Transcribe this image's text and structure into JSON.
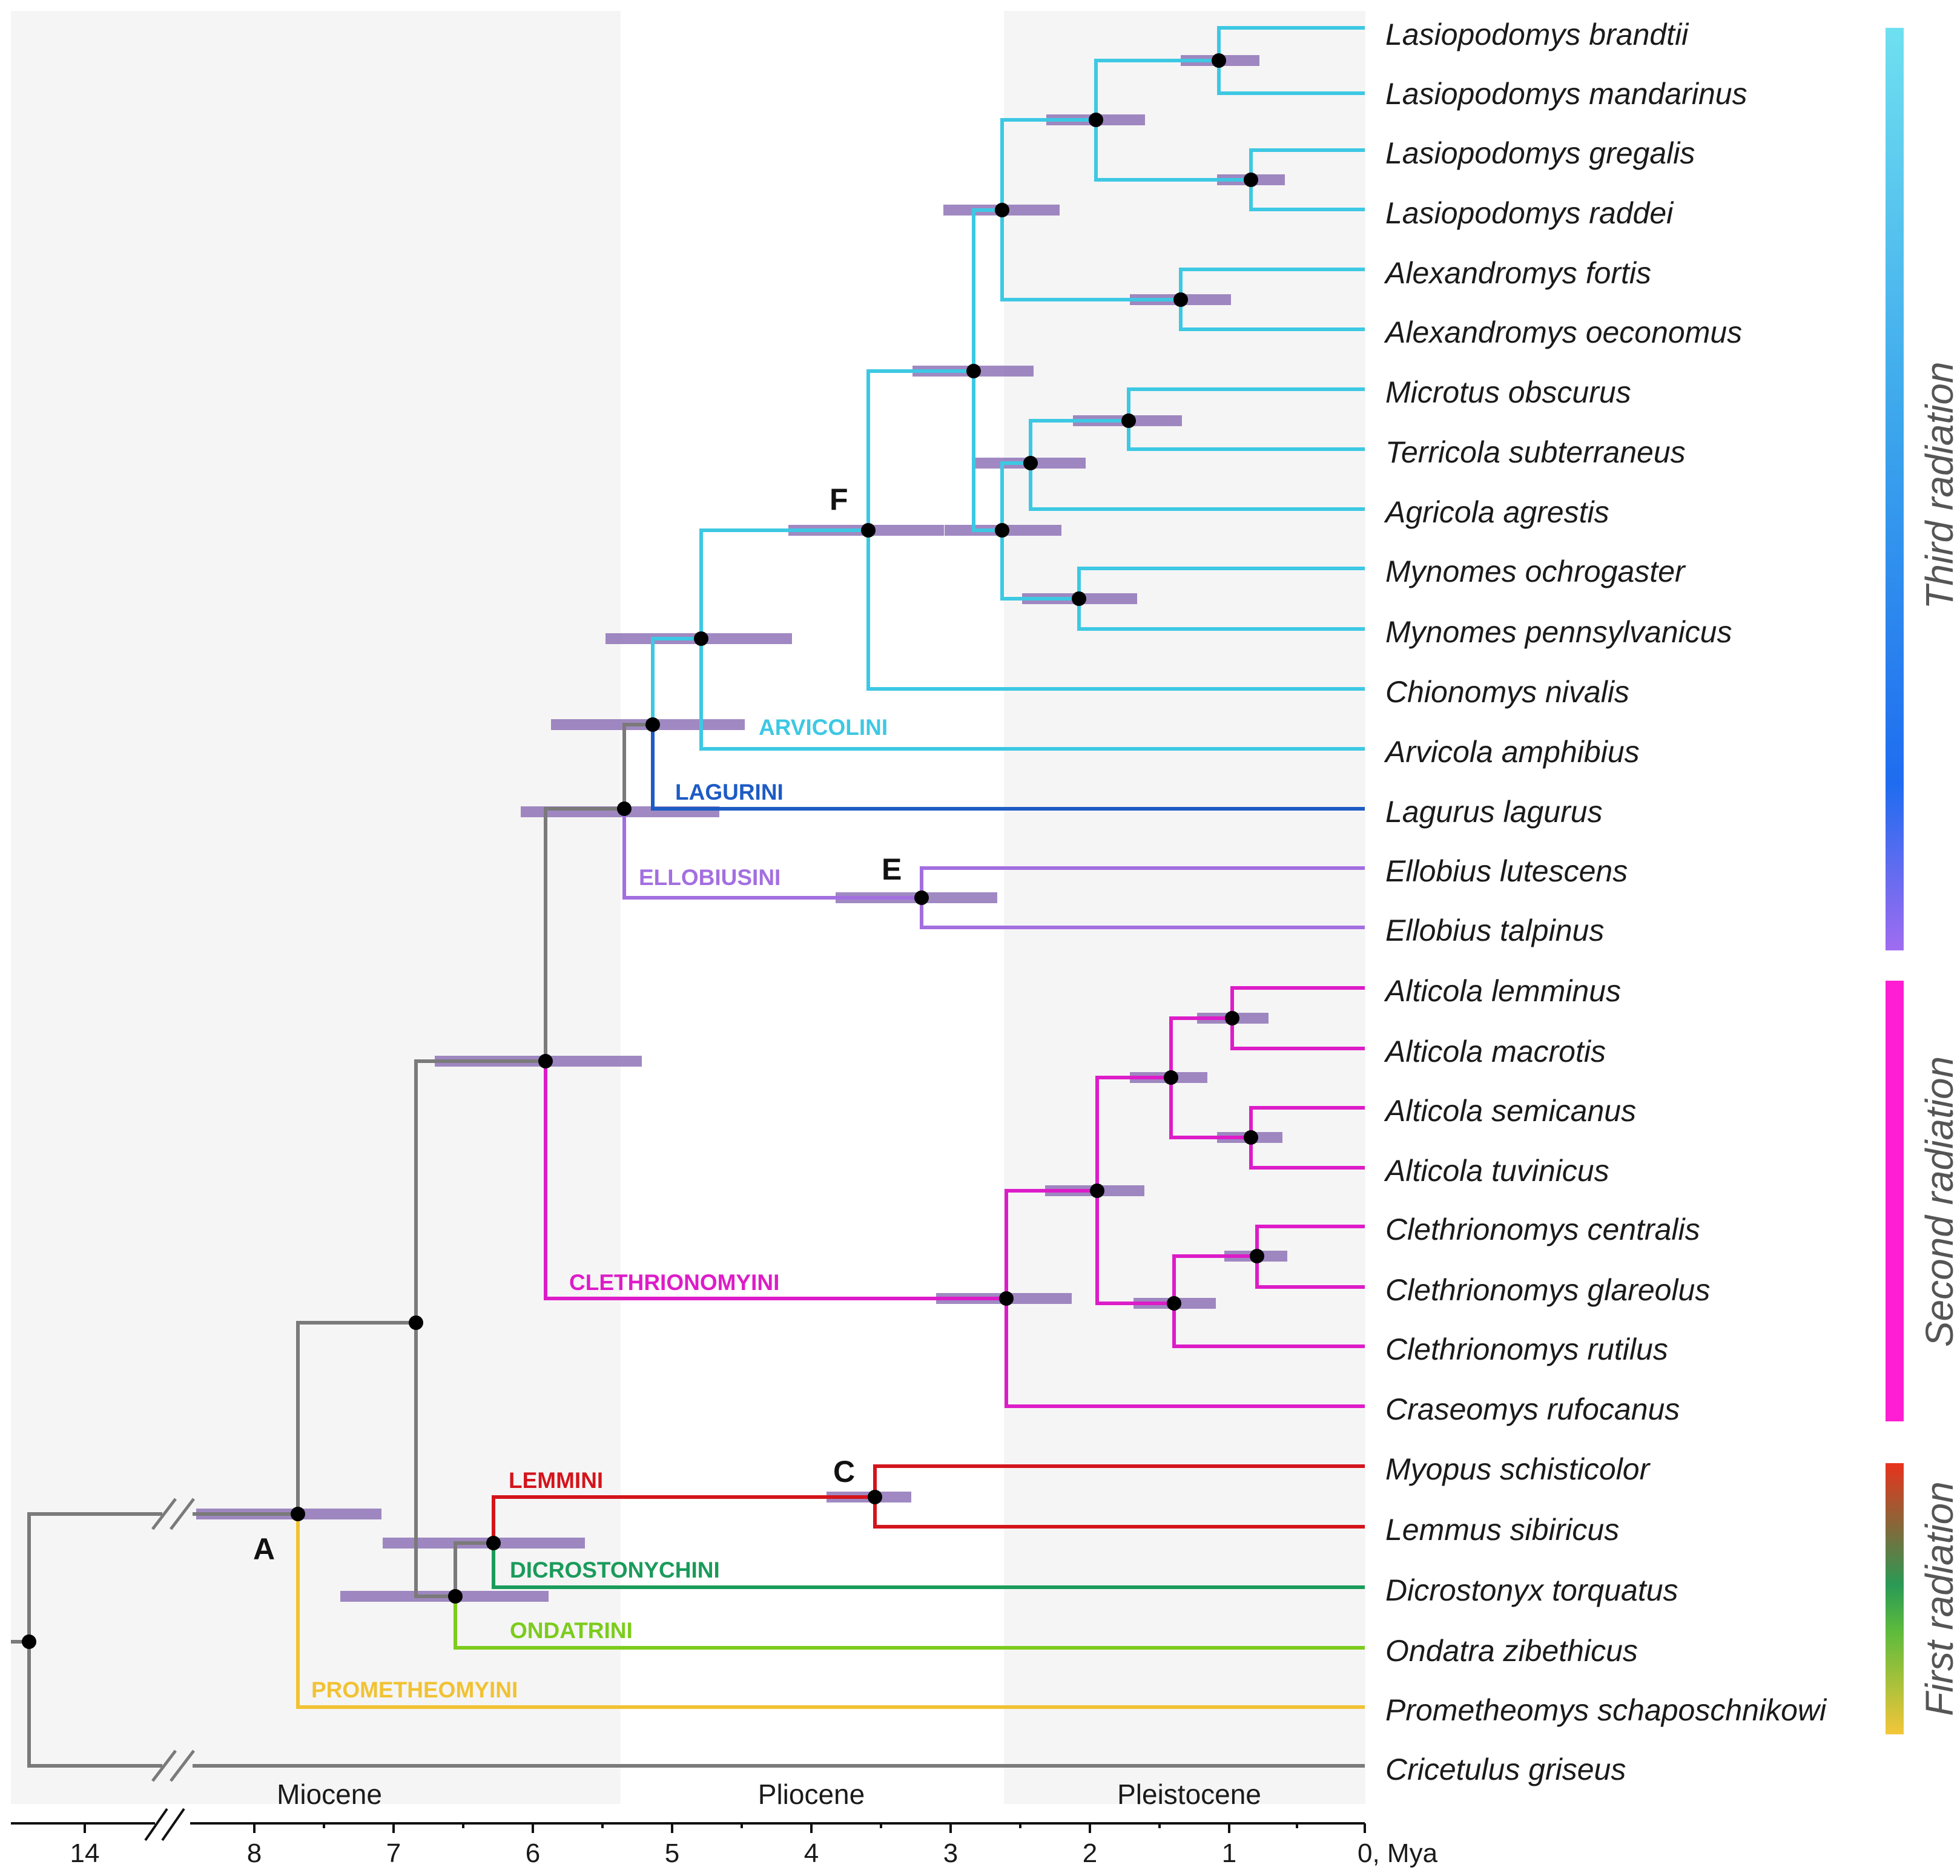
{
  "tree": {
    "taxa": [
      "Lasiopodomys brandtii",
      "Lasiopodomys mandarinus",
      "Lasiopodomys gregalis",
      "Lasiopodomys raddei",
      "Alexandromys fortis",
      "Alexandromys oeconomus",
      "Microtus obscurus",
      "Terricola subterraneus",
      "Agricola agrestis",
      "Mynomes ochrogaster",
      "Mynomes pennsylvanicus",
      "Chionomys nivalis",
      "Arvicola amphibius",
      "Lagurus lagurus",
      "Ellobius lutescens",
      "Ellobius talpinus",
      "Alticola lemminus",
      "Alticola macrotis",
      "Alticola semicanus",
      "Alticola tuvinicus",
      "Clethrionomys centralis",
      "Clethrionomys glareolus",
      "Clethrionomys rutilus",
      "Craseomys rufocanus",
      "Myopus schisticolor",
      "Lemmus sibiricus",
      "Dicrostonyx torquatus",
      "Ondatra zibethicus",
      "Prometheomys schaposchnikowi",
      "Cricetulus griseus"
    ],
    "tribes": [
      "ARVICOLINI",
      "LAGURINI",
      "ELLOBIUSINI",
      "CLETHRIONOMYINI",
      "LEMMINI",
      "DICROSTONYCHINI",
      "ONDATRINI",
      "PROMETHEOMYINI"
    ],
    "node_labels": [
      "A",
      "C",
      "E",
      "F"
    ]
  },
  "axis": {
    "ticks": [
      "14",
      "8",
      "7",
      "6",
      "5",
      "4",
      "3",
      "2",
      "1",
      "0, Mya"
    ],
    "epochs": [
      "Miocene",
      "Pliocene",
      "Pleistocene"
    ]
  },
  "radiations": [
    "Third radiation",
    "Second radiation",
    "First radiation"
  ],
  "colors": {
    "arvicolini": "#3dc8e3",
    "lagurini": "#1d5bc4",
    "ellobiusini": "#a36fe0",
    "clethrionomyini": "#dd1cc8",
    "lemmini": "#d4141b",
    "dicrostonychini": "#1a9b5a",
    "ondatrini": "#7ccc1b",
    "prometheomyini": "#f1c232",
    "backbone": "#7a7a7a",
    "hpd_bar": "#8b6fb5"
  }
}
